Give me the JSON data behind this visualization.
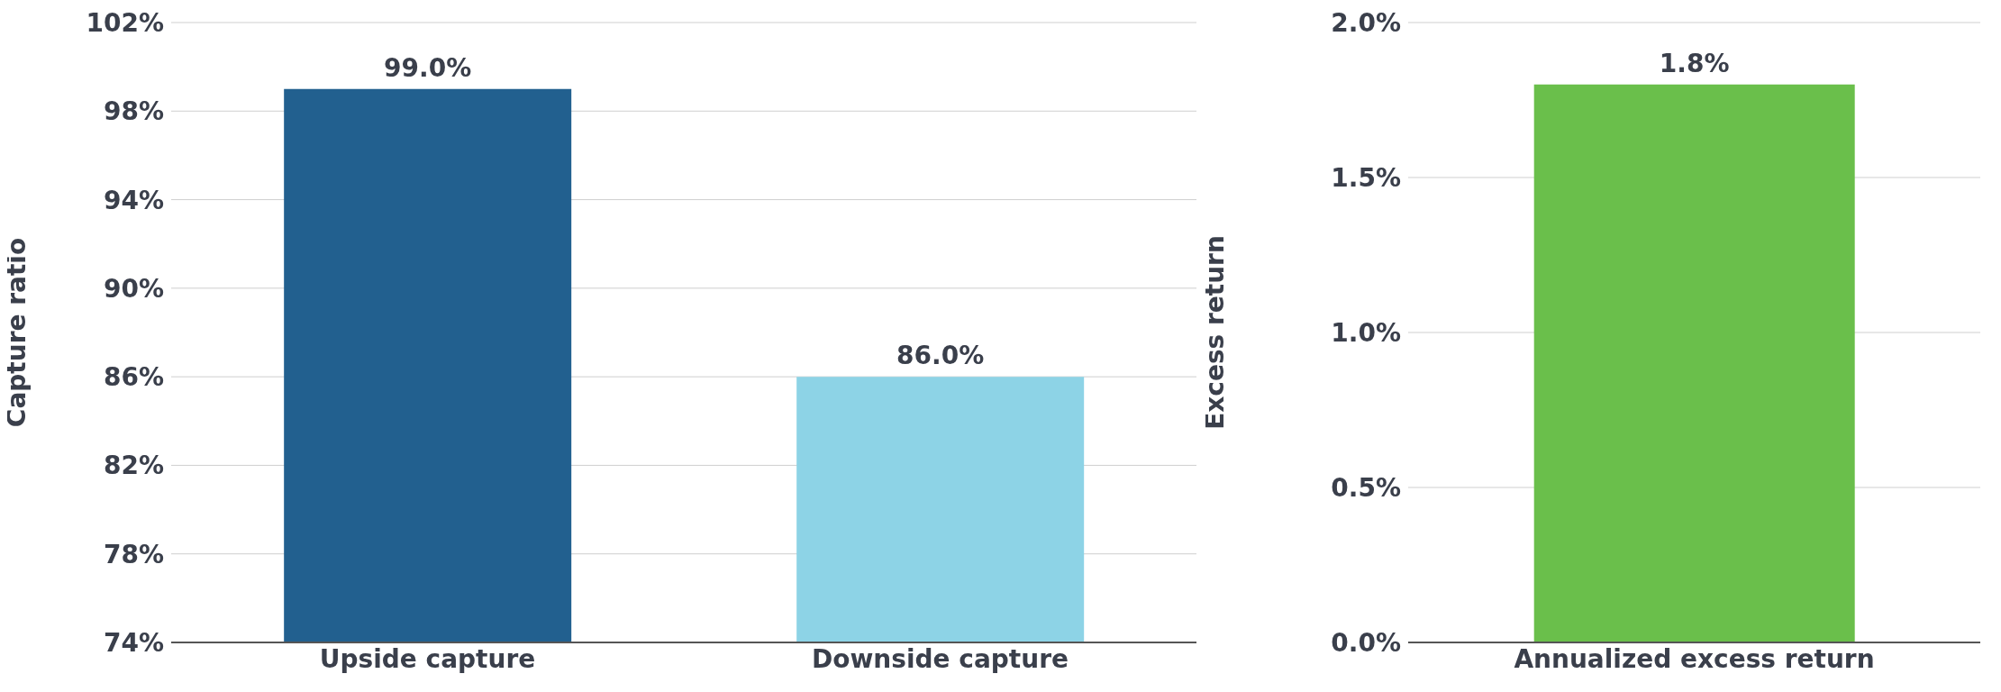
{
  "chart_data": [
    {
      "type": "bar",
      "categories": [
        "Upside capture",
        "Downside capture"
      ],
      "values": [
        99.0,
        86.0
      ],
      "colors": [
        "#22608f",
        "#8dd3e6"
      ],
      "value_labels": [
        "99.0%",
        "86.0%"
      ],
      "ylabel": "Capture ratio",
      "ylim": [
        74,
        102
      ],
      "yticks": [
        {
          "value": 74,
          "label": "74%"
        },
        {
          "value": 78,
          "label": "78%"
        },
        {
          "value": 82,
          "label": "82%"
        },
        {
          "value": 86,
          "label": "86%"
        },
        {
          "value": 90,
          "label": "90%"
        },
        {
          "value": 94,
          "label": "94%"
        },
        {
          "value": 98,
          "label": "98%"
        },
        {
          "value": 102,
          "label": "102%"
        }
      ],
      "grid": "y",
      "legend": false
    },
    {
      "type": "bar",
      "categories": [
        "Annualized excess return"
      ],
      "values": [
        1.8
      ],
      "colors": [
        "#6abf4b"
      ],
      "value_labels": [
        "1.8%"
      ],
      "ylabel": "Excess return",
      "ylim": [
        0,
        2
      ],
      "yticks": [
        {
          "value": 0,
          "label": "0.0%"
        },
        {
          "value": 0.5,
          "label": "0.5%"
        },
        {
          "value": 1,
          "label": "1.0%"
        },
        {
          "value": 1.5,
          "label": "1.5%"
        },
        {
          "value": 2,
          "label": "2.0%"
        }
      ],
      "grid": "y",
      "legend": false
    }
  ]
}
